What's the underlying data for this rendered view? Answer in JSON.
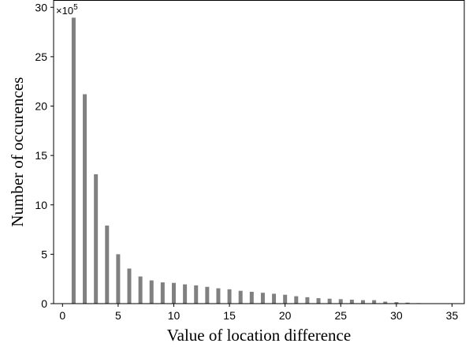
{
  "chart_data": {
    "type": "bar",
    "title": "",
    "xlabel": "Value of location difference",
    "ylabel": "Number of occurences",
    "y_multiplier_base": "×10",
    "y_multiplier_exp": "5",
    "xlim": [
      -0.8,
      36.1
    ],
    "ylim": [
      0,
      30.7
    ],
    "xticks": [
      0,
      5,
      10,
      15,
      20,
      25,
      30,
      35
    ],
    "yticks": [
      0,
      5,
      10,
      15,
      20,
      25,
      30
    ],
    "bar_color": "#808080",
    "grid": false,
    "x": [
      1,
      2,
      3,
      4,
      5,
      6,
      7,
      8,
      9,
      10,
      11,
      12,
      13,
      14,
      15,
      16,
      17,
      18,
      19,
      20,
      21,
      22,
      23,
      24,
      25,
      26,
      27,
      28,
      29,
      30,
      31,
      32
    ],
    "values": [
      28.95,
      21.2,
      13.1,
      7.9,
      5.0,
      3.55,
      2.75,
      2.35,
      2.15,
      2.1,
      1.95,
      1.85,
      1.7,
      1.55,
      1.45,
      1.3,
      1.2,
      1.1,
      1.0,
      0.9,
      0.75,
      0.65,
      0.55,
      0.5,
      0.45,
      0.4,
      0.35,
      0.35,
      0.2,
      0.15,
      0.1,
      0.05
    ]
  }
}
